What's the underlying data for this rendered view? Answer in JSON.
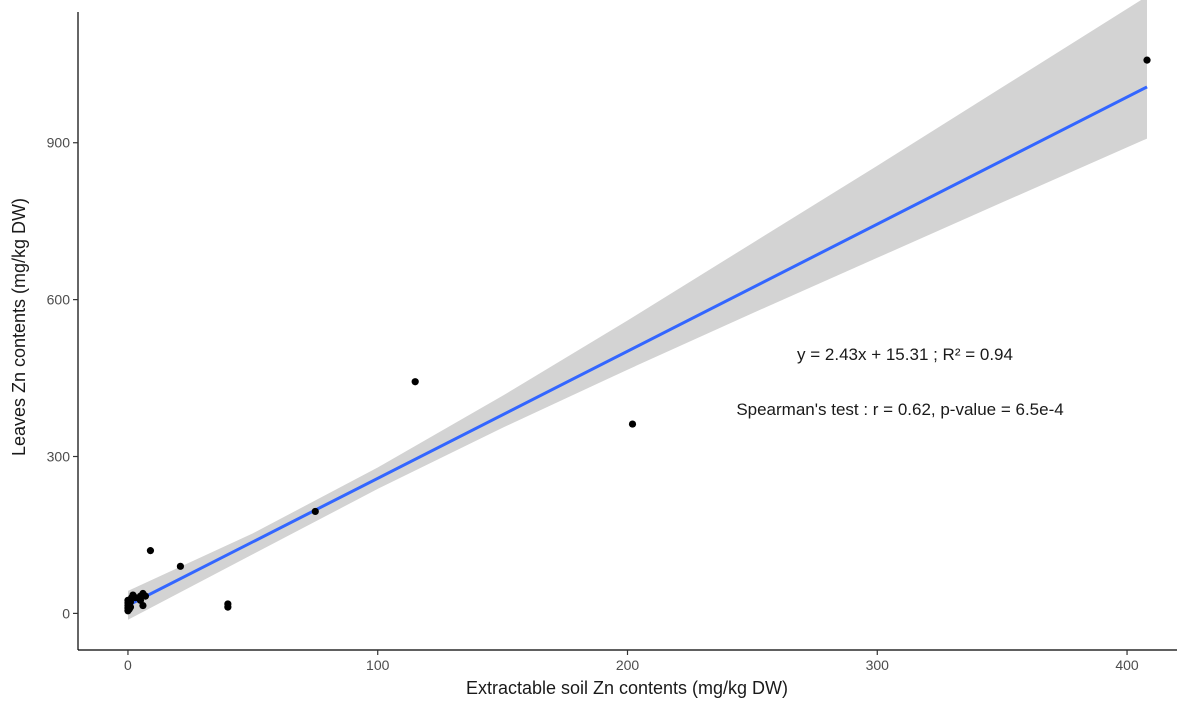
{
  "chart_data": {
    "type": "scatter",
    "title": "",
    "xlabel": "Extractable soil Zn contents (mg/kg DW)",
    "ylabel": "Leaves Zn contents (mg/kg DW)",
    "xlim": [
      -20,
      420
    ],
    "ylim": [
      -70,
      1150
    ],
    "x_ticks": [
      0,
      100,
      200,
      300,
      400
    ],
    "y_ticks": [
      0,
      300,
      600,
      900
    ],
    "grid": false,
    "points": [
      {
        "x": 0,
        "y": 5
      },
      {
        "x": 0,
        "y": 10
      },
      {
        "x": 0,
        "y": 15
      },
      {
        "x": 0,
        "y": 20
      },
      {
        "x": 0,
        "y": 25
      },
      {
        "x": 0.5,
        "y": 8
      },
      {
        "x": 0.5,
        "y": 18
      },
      {
        "x": 1,
        "y": 12
      },
      {
        "x": 1,
        "y": 22
      },
      {
        "x": 1.5,
        "y": 30
      },
      {
        "x": 2,
        "y": 35
      },
      {
        "x": 3,
        "y": 30
      },
      {
        "x": 5,
        "y": 25
      },
      {
        "x": 5,
        "y": 33
      },
      {
        "x": 6,
        "y": 38
      },
      {
        "x": 6,
        "y": 15
      },
      {
        "x": 7,
        "y": 33
      },
      {
        "x": 9,
        "y": 120
      },
      {
        "x": 21,
        "y": 90
      },
      {
        "x": 40,
        "y": 12
      },
      {
        "x": 40,
        "y": 18
      },
      {
        "x": 75,
        "y": 195
      },
      {
        "x": 115,
        "y": 443
      },
      {
        "x": 202,
        "y": 362
      },
      {
        "x": 408,
        "y": 1058
      }
    ],
    "fit": {
      "slope": 2.43,
      "intercept": 15.31,
      "x_range": [
        0,
        408
      ],
      "ci": [
        {
          "x": 0,
          "lo": -12,
          "hi": 43
        },
        {
          "x": 50,
          "lo": 113,
          "hi": 153
        },
        {
          "x": 100,
          "lo": 238,
          "hi": 279
        },
        {
          "x": 150,
          "lo": 355,
          "hi": 416
        },
        {
          "x": 200,
          "lo": 466,
          "hi": 560
        },
        {
          "x": 250,
          "lo": 574,
          "hi": 708
        },
        {
          "x": 300,
          "lo": 680,
          "hi": 856
        },
        {
          "x": 350,
          "lo": 786,
          "hi": 1006
        },
        {
          "x": 408,
          "lo": 908,
          "hi": 1180
        }
      ]
    },
    "colors": {
      "points": "#000000",
      "fit_line": "#3366ff",
      "ci_band": "#d3d3d3",
      "axis": "#000000",
      "tick_label": "#4d4d4d"
    },
    "annotations": [
      "y = 2.43x + 15.31 ; R² = 0.94",
      "Spearman's test : r = 0.62, p-value = 6.5e-4"
    ]
  }
}
